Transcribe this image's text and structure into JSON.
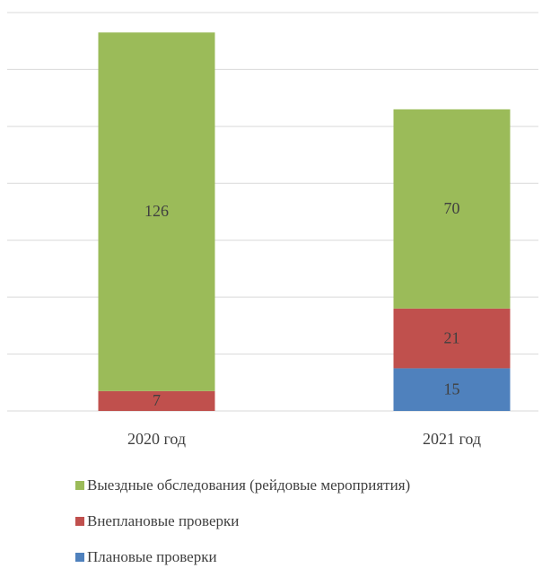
{
  "chart_data": {
    "type": "stacked_bar",
    "categories": [
      "2020 год",
      "2021 год"
    ],
    "series": [
      {
        "name": "Плановые проверки",
        "color": "#4f81bd",
        "values": [
          null,
          15
        ]
      },
      {
        "name": "Внеплановые проверки",
        "color": "#c0504d",
        "values": [
          7,
          21
        ]
      },
      {
        "name": "Выездные обследования (рейдовые мероприятия)",
        "color": "#9bbb59",
        "values": [
          126,
          70
        ]
      }
    ],
    "ylim": [
      0,
      140
    ],
    "yticks": [
      0,
      20,
      40,
      60,
      80,
      100,
      120,
      140
    ],
    "grid": true,
    "legend": "bottom"
  }
}
